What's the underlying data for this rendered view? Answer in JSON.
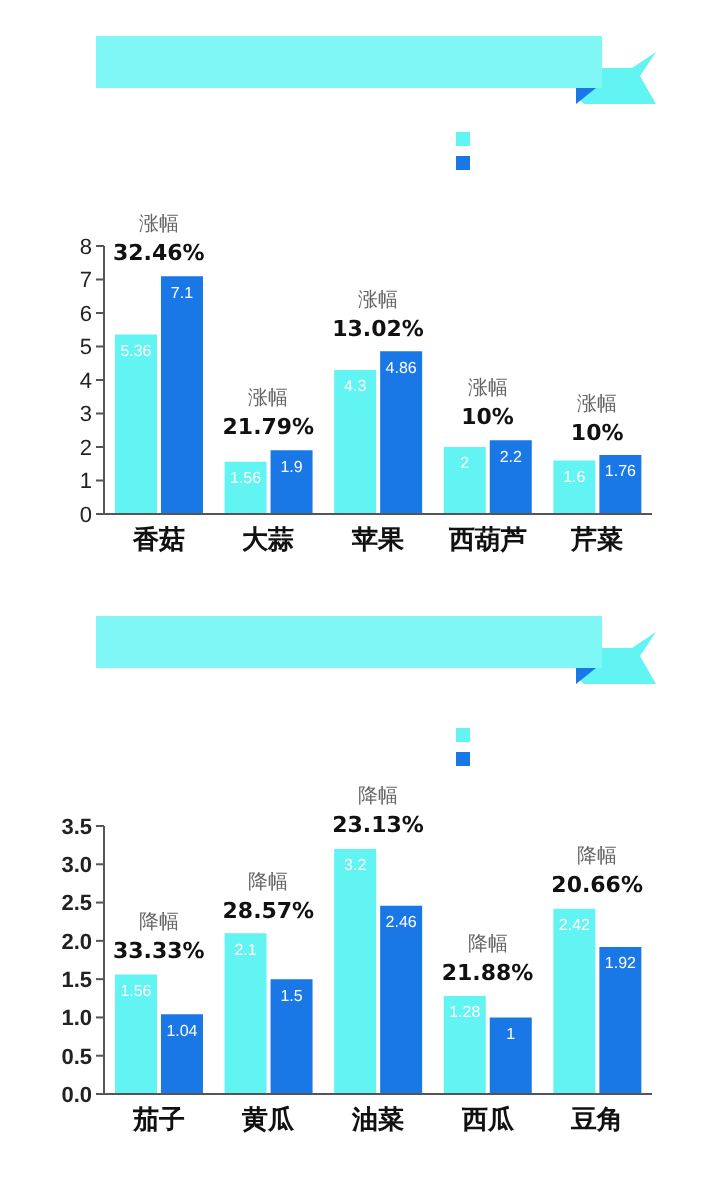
{
  "chart_data": [
    {
      "type": "bar",
      "categories": [
        "香菇",
        "大蒜",
        "苹果",
        "西葫芦",
        "芹菜"
      ],
      "series": [
        {
          "color": "#62f3f3",
          "values": [
            5.36,
            1.56,
            4.3,
            2,
            1.6
          ]
        },
        {
          "color": "#1a78e6",
          "values": [
            7.1,
            1.9,
            4.86,
            2.2,
            1.76
          ]
        }
      ],
      "ylim": [
        0,
        8
      ],
      "yticks": [
        0,
        1,
        2,
        3,
        4,
        5,
        6,
        7,
        8
      ],
      "data_labels": true,
      "grid": false,
      "annotations": [
        {
          "text": "涨幅\n32.46%",
          "x": "香菇",
          "y": 7.1
        },
        {
          "text": "涨幅\n21.79%",
          "x": "大蒜",
          "y": 1.9
        },
        {
          "text": "涨幅\n13.02%",
          "x": "苹果",
          "y": 4.86
        },
        {
          "text": "涨幅\n10%",
          "x": "西葫芦",
          "y": 2.2
        },
        {
          "text": "涨幅\n10%",
          "x": "芹菜",
          "y": 1.76
        }
      ]
    },
    {
      "type": "bar",
      "categories": [
        "茄子",
        "黄瓜",
        "油菜",
        "西瓜",
        "豆角"
      ],
      "series": [
        {
          "color": "#62f3f3",
          "values": [
            1.56,
            2.1,
            3.2,
            1.28,
            2.42
          ]
        },
        {
          "color": "#1a78e6",
          "values": [
            1.04,
            1.5,
            2.46,
            1,
            1.92
          ]
        }
      ],
      "ylim": [
        0,
        3.5
      ],
      "yticks": [
        {
          "value": 0,
          "label": "0.0"
        },
        0.5,
        {
          "value": 1,
          "label": "1.0"
        },
        1.5,
        {
          "value": 2,
          "label": "2.0"
        },
        2.5,
        {
          "value": 3,
          "label": "3.0"
        },
        3.5
      ],
      "data_labels": true,
      "grid": false,
      "annotations": [
        {
          "text": "降幅\n33.33%",
          "x": "茄子",
          "y": 1.56
        },
        {
          "text": "降幅\n28.57%",
          "x": "黄瓜",
          "y": 2.1
        },
        {
          "text": "降幅\n23.13%",
          "x": "油菜",
          "y": 3.2
        },
        {
          "text": "降幅\n21.88%",
          "x": "西瓜",
          "y": 1.28
        },
        {
          "text": "降幅\n20.66%",
          "x": "豆角",
          "y": 2.42
        }
      ]
    }
  ]
}
